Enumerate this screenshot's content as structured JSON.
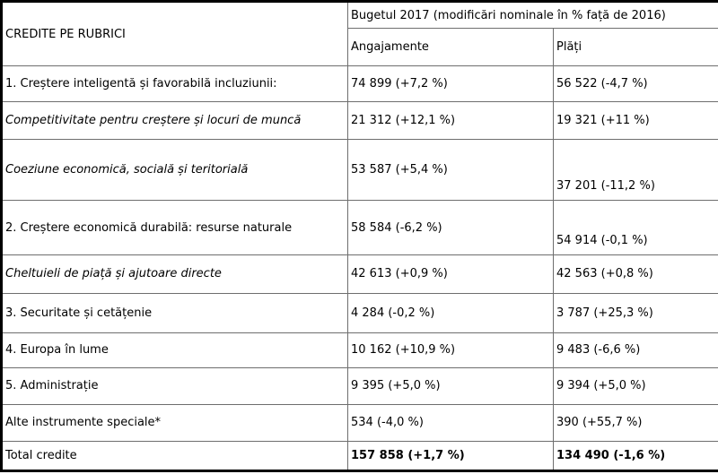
{
  "colors": {
    "background": "#ffffff",
    "text": "#000000",
    "outer_border": "#000000",
    "grid_lines": "#6e6e6e"
  },
  "table": {
    "corner_label": "CREDITE PE RUBRICI",
    "header": {
      "title": "Bugetul 2017 (modificări nominale în % față de 2016)",
      "angajamente": "Angajamente",
      "plati": "Plăți"
    },
    "rows": [
      {
        "kind": "main",
        "label": "1. Creștere inteligentă și favorabilă incluziunii:",
        "angajamente": "74 899 (+7,2 %)",
        "plati": "56 522 (-4,7 %)"
      },
      {
        "kind": "sub",
        "label": "Competitivitate pentru creștere și locuri de muncă",
        "angajamente": "21 312 (+12,1 %)",
        "plati": "19 321 (+11 %)"
      },
      {
        "kind": "sub",
        "label": "Coeziune economică, socială și teritorială",
        "angajamente": "53 587 (+5,4 %)",
        "plati": "37 201 (-11,2 %)"
      },
      {
        "kind": "main",
        "label": "2. Creștere economică durabilă: resurse naturale",
        "angajamente": "58 584 (-6,2 %)",
        "plati": "54 914 (-0,1 %)"
      },
      {
        "kind": "sub",
        "label": "Cheltuieli de piață și ajutoare directe",
        "angajamente": "42 613 (+0,9 %)",
        "plati": "42 563 (+0,8 %)"
      },
      {
        "kind": "main",
        "label": "3. Securitate și cetățenie",
        "angajamente": "4 284 (-0,2 %)",
        "plati": "3 787 (+25,3 %)"
      },
      {
        "kind": "main",
        "label": "4. Europa în lume",
        "angajamente": "10 162 (+10,9 %)",
        "plati": "9 483 (-6,6 %)"
      },
      {
        "kind": "main",
        "label": "5. Administrație",
        "angajamente": "9 395 (+5,0 %)",
        "plati": "9 394 (+5,0 %)"
      },
      {
        "kind": "special",
        "label": "Alte instrumente speciale*",
        "angajamente": "534 (-4,0 %)",
        "plati": "390 (+55,7 %)"
      },
      {
        "kind": "total",
        "label": "Total credite",
        "angajamente": "157 858 (+1,7 %)",
        "plati": "134 490 (-1,6 %)"
      }
    ]
  }
}
